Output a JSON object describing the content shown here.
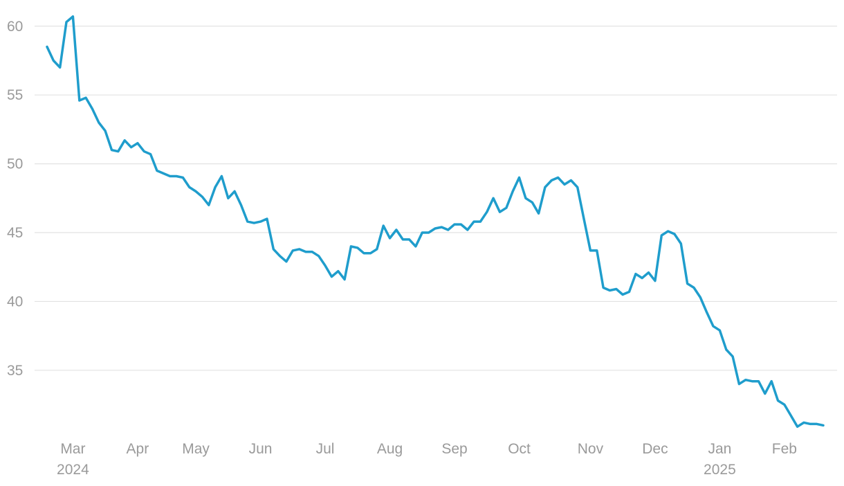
{
  "chart_data": {
    "type": "line",
    "color": "#1f9dcc",
    "grid": true,
    "ylim": [
      30.5,
      61.9
    ],
    "yticks": [
      35,
      40,
      45,
      50,
      55,
      60
    ],
    "categories": [
      null,
      null,
      null,
      null,
      "Mar 2024",
      null,
      null,
      null,
      null,
      null,
      null,
      null,
      null,
      null,
      "Apr",
      null,
      null,
      null,
      null,
      null,
      null,
      null,
      null,
      "May",
      null,
      null,
      null,
      null,
      null,
      null,
      null,
      null,
      null,
      "Jun",
      null,
      null,
      null,
      null,
      null,
      null,
      null,
      null,
      null,
      "Jul",
      null,
      null,
      null,
      null,
      null,
      null,
      null,
      null,
      null,
      "Aug",
      null,
      null,
      null,
      null,
      null,
      null,
      null,
      null,
      null,
      "Sep",
      null,
      null,
      null,
      null,
      null,
      null,
      null,
      null,
      null,
      "Oct",
      null,
      null,
      null,
      null,
      null,
      null,
      null,
      null,
      null,
      null,
      "Nov",
      null,
      null,
      null,
      null,
      null,
      null,
      null,
      null,
      null,
      "Dec",
      null,
      null,
      null,
      null,
      null,
      null,
      null,
      null,
      null,
      "Jan 2025",
      null,
      null,
      null,
      null,
      null,
      null,
      null,
      null,
      null,
      "Feb",
      null,
      null,
      null,
      null,
      null,
      null
    ],
    "values": [
      58.5,
      57.5,
      57.0,
      60.3,
      60.7,
      54.6,
      54.8,
      54.0,
      53.0,
      52.4,
      51.0,
      50.9,
      51.7,
      51.2,
      51.5,
      50.9,
      50.7,
      49.5,
      49.3,
      49.1,
      49.1,
      49.0,
      48.3,
      48.0,
      47.6,
      47.0,
      48.3,
      49.1,
      47.5,
      48.0,
      47.0,
      45.8,
      45.7,
      45.8,
      46.0,
      43.8,
      43.3,
      42.9,
      43.7,
      43.8,
      43.6,
      43.6,
      43.3,
      42.6,
      41.8,
      42.2,
      41.6,
      44.0,
      43.9,
      43.5,
      43.5,
      43.8,
      45.5,
      44.6,
      45.2,
      44.5,
      44.5,
      44.0,
      45.0,
      45.0,
      45.3,
      45.4,
      45.2,
      45.6,
      45.6,
      45.2,
      45.8,
      45.8,
      46.5,
      47.5,
      46.5,
      46.8,
      48.0,
      49.0,
      47.5,
      47.2,
      46.4,
      48.3,
      48.8,
      49.0,
      48.5,
      48.8,
      48.3,
      46.0,
      43.7,
      43.7,
      41.0,
      40.8,
      40.9,
      40.5,
      40.7,
      42.0,
      41.7,
      42.1,
      41.5,
      44.8,
      45.1,
      44.9,
      44.2,
      41.3,
      41.0,
      40.3,
      39.2,
      38.2,
      37.9,
      36.5,
      36.0,
      34.0,
      34.3,
      34.2,
      34.2,
      33.3,
      34.2,
      32.8,
      32.5,
      31.7,
      30.9,
      31.2,
      31.1,
      31.1,
      31.0
    ]
  }
}
